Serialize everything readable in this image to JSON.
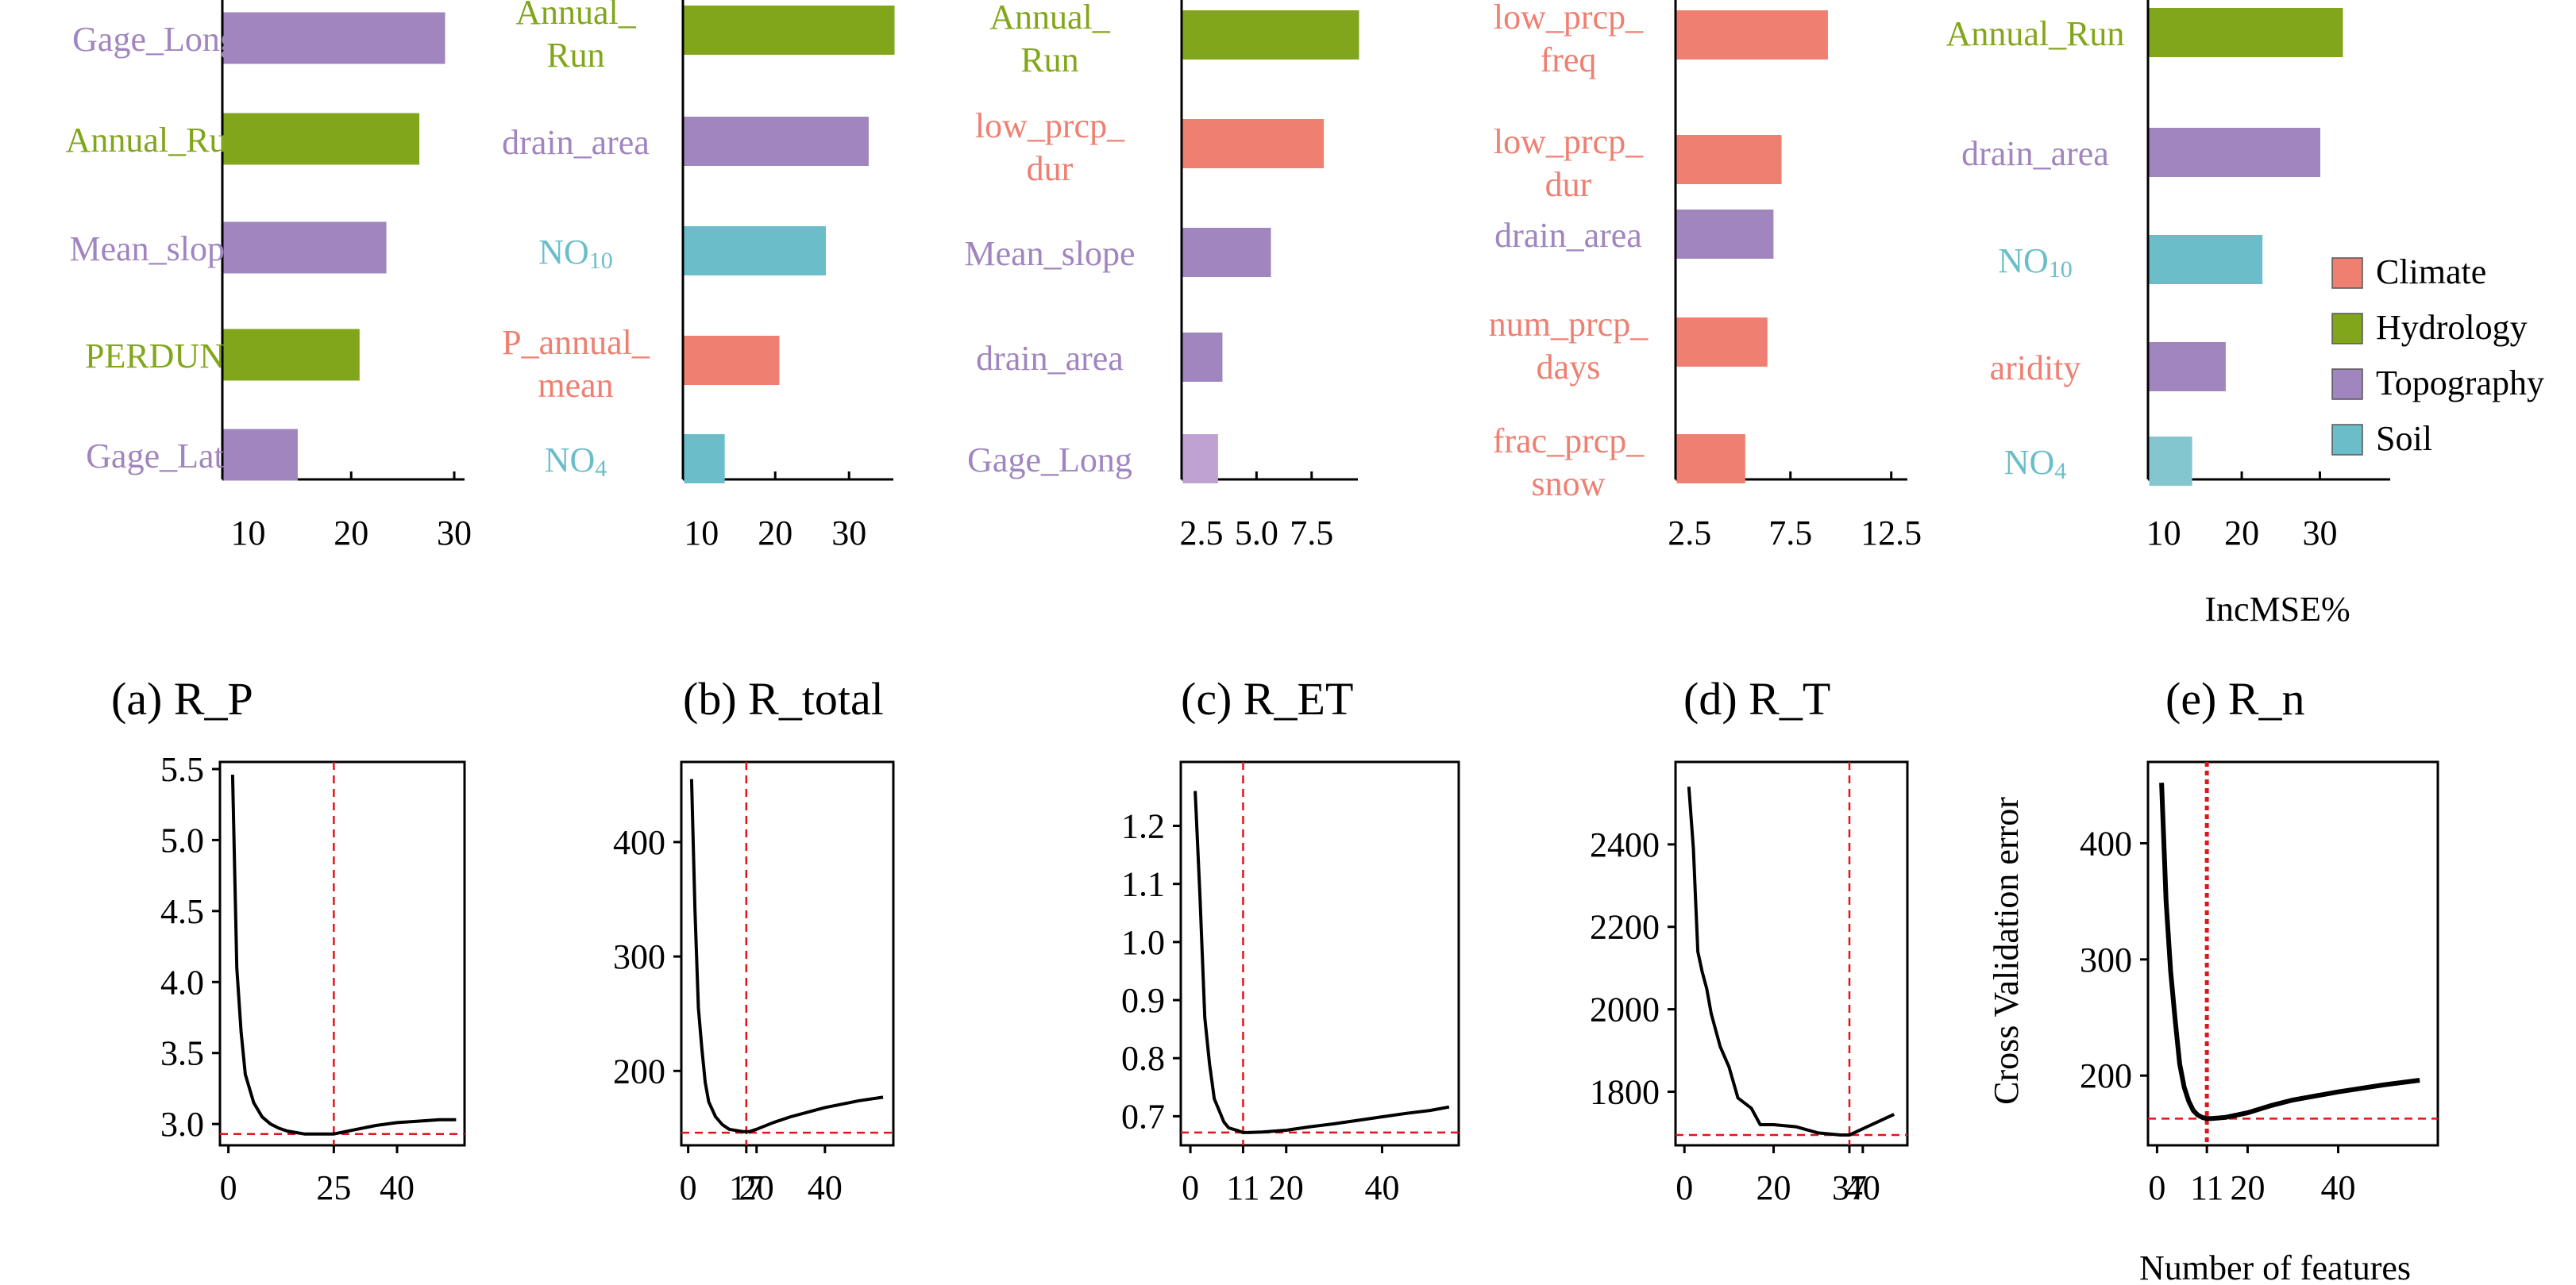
{
  "colors": {
    "Climate": "#ef7f71",
    "Hydrology": "#82a61b",
    "Topography": "#a085be",
    "Soil": "#6bbec9",
    "Topography_light": "#bfa2d2",
    "Soil_light": "#84c6d0",
    "threshold": "#e0141b"
  },
  "legend": {
    "items": [
      {
        "label": "Climate",
        "color": "#ef7f71"
      },
      {
        "label": "Hydrology",
        "color": "#82a61b"
      },
      {
        "label": "Topography",
        "color": "#a085be"
      },
      {
        "label": "Soil",
        "color": "#6bbec9"
      }
    ]
  },
  "xlabel_importance": "IncMSE%",
  "ylabel_cv": "Cross Validation error",
  "xlabel_cv": "Number of features",
  "chart_data": [
    {
      "type": "bar",
      "orientation": "horizontal",
      "xlim": [
        7.5,
        31
      ],
      "xticks": [
        10,
        20,
        30
      ],
      "bars": [
        {
          "label": [
            "Gage_Long"
          ],
          "value": 29.0,
          "group": "Topography"
        },
        {
          "label": [
            "Annual_Run"
          ],
          "value": 26.5,
          "group": "Hydrology"
        },
        {
          "label": [
            "Mean_slope"
          ],
          "value": 23.3,
          "group": "Topography"
        },
        {
          "label": [
            "PERDUN"
          ],
          "value": 20.7,
          "group": "Hydrology"
        },
        {
          "label": [
            "Gage_Lat"
          ],
          "value": 14.7,
          "group": "Topography"
        }
      ]
    },
    {
      "type": "bar",
      "orientation": "horizontal",
      "xlim": [
        7.5,
        36
      ],
      "xticks": [
        10,
        20,
        30
      ],
      "bars": [
        {
          "label": [
            "Annual_",
            "Run"
          ],
          "value": 36.0,
          "group": "Hydrology"
        },
        {
          "label": [
            "drain_area"
          ],
          "value": 32.5,
          "group": "Topography"
        },
        {
          "label": [
            "NO",
            "10"
          ],
          "sub": true,
          "value": 26.7,
          "group": "Soil"
        },
        {
          "label": [
            "P_annual_",
            "mean"
          ],
          "value": 20.4,
          "group": "Climate"
        },
        {
          "label": [
            "NO",
            "4"
          ],
          "sub": true,
          "value": 13.0,
          "group": "Soil"
        }
      ]
    },
    {
      "type": "bar",
      "orientation": "horizontal",
      "xlim": [
        1.6,
        9.6
      ],
      "xticks": [
        2.5,
        5.0,
        7.5
      ],
      "tickLabels": [
        "2.5",
        "5.0",
        "7.5"
      ],
      "bars": [
        {
          "label": [
            "Annual_",
            "Run"
          ],
          "value": 9.6,
          "group": "Hydrology"
        },
        {
          "label": [
            "low_prcp_",
            "dur"
          ],
          "value": 8.0,
          "group": "Climate"
        },
        {
          "label": [
            "Mean_slope"
          ],
          "value": 5.6,
          "group": "Topography"
        },
        {
          "label": [
            "drain_area"
          ],
          "value": 3.4,
          "group": "Topography"
        },
        {
          "label": [
            "Gage_Long"
          ],
          "value": 3.2,
          "group": "Topography_light"
        }
      ]
    },
    {
      "type": "bar",
      "orientation": "horizontal",
      "xlim": [
        1.8,
        13.3
      ],
      "xticks": [
        2.5,
        7.5,
        12.5
      ],
      "tickLabels": [
        "2.5",
        "7.5",
        "12.5"
      ],
      "bars": [
        {
          "label": [
            "low_prcp_",
            "freq"
          ],
          "value": 9.3,
          "group": "Climate"
        },
        {
          "label": [
            "low_prcp_",
            "dur"
          ],
          "value": 7.0,
          "group": "Climate"
        },
        {
          "label": [
            "drain_area"
          ],
          "value": 6.6,
          "group": "Topography"
        },
        {
          "label": [
            "num_prcp_",
            "days"
          ],
          "value": 6.3,
          "group": "Climate"
        },
        {
          "label": [
            "frac_prcp_",
            "snow"
          ],
          "value": 5.2,
          "group": "Climate"
        }
      ]
    },
    {
      "type": "bar",
      "orientation": "horizontal",
      "xlim": [
        8,
        39
      ],
      "xticks": [
        10,
        20,
        30
      ],
      "bars": [
        {
          "label": [
            "Annual_Run"
          ],
          "value": 32.8,
          "group": "Hydrology"
        },
        {
          "label": [
            "drain_area"
          ],
          "value": 29.9,
          "group": "Topography"
        },
        {
          "label": [
            "NO",
            "10"
          ],
          "sub": true,
          "value": 22.5,
          "group": "Soil"
        },
        {
          "label": [
            "aridity"
          ],
          "value": 17.8,
          "group": "Topography",
          "labelGroup": "Climate"
        },
        {
          "label": [
            "NO",
            "4"
          ],
          "sub": true,
          "value": 13.5,
          "group": "Soil_light"
        }
      ]
    },
    {
      "type": "line",
      "title": "(a) R_P",
      "xlim": [
        -2,
        56
      ],
      "ylim": [
        2.85,
        5.55
      ],
      "xticks": [
        0,
        25,
        40
      ],
      "yticks": [
        3.0,
        3.5,
        4.0,
        4.5,
        5.0,
        5.5
      ],
      "yticklabels": [
        "3.0",
        "3.5",
        "4.0",
        "4.5",
        "5.0",
        "5.5"
      ],
      "optimal": 25,
      "min_value": 2.93,
      "x": [
        1,
        2,
        3,
        4,
        6,
        8,
        10,
        12,
        14,
        16,
        18,
        20,
        25,
        30,
        35,
        40,
        45,
        50,
        54
      ],
      "y": [
        5.46,
        4.1,
        3.65,
        3.35,
        3.15,
        3.05,
        3.0,
        2.97,
        2.95,
        2.94,
        2.93,
        2.93,
        2.93,
        2.96,
        2.99,
        3.01,
        3.02,
        3.03,
        3.03
      ]
    },
    {
      "type": "line",
      "title": "(b) R_total",
      "xlim": [
        -2,
        60
      ],
      "ylim": [
        135,
        470
      ],
      "xticks": [
        0,
        17,
        20,
        40
      ],
      "yticks": [
        200,
        300,
        400
      ],
      "optimal": 17,
      "min_value": 146,
      "x": [
        1,
        2,
        3,
        4,
        5,
        6,
        8,
        10,
        12,
        14,
        16,
        17,
        18,
        20,
        25,
        30,
        40,
        50,
        57
      ],
      "y": [
        455,
        340,
        255,
        220,
        190,
        173,
        160,
        153,
        149,
        148,
        147,
        147,
        147,
        149,
        155,
        160,
        168,
        174,
        177
      ]
    },
    {
      "type": "line",
      "title": "(c) R_ET",
      "xlim": [
        -2,
        56
      ],
      "ylim": [
        0.65,
        1.31
      ],
      "xticks": [
        0,
        11,
        20,
        40
      ],
      "yticks": [
        0.7,
        0.8,
        0.9,
        1.0,
        1.1,
        1.2
      ],
      "yticklabels": [
        "0.7",
        "0.8",
        "0.9",
        "1.0",
        "1.1",
        "1.2"
      ],
      "optimal": 11,
      "min_value": 0.672,
      "x": [
        1,
        2,
        3,
        4,
        5,
        6,
        7,
        8,
        10,
        11,
        12,
        15,
        20,
        25,
        30,
        35,
        40,
        45,
        50,
        54
      ],
      "y": [
        1.26,
        1.08,
        0.87,
        0.79,
        0.73,
        0.71,
        0.69,
        0.68,
        0.675,
        0.672,
        0.672,
        0.673,
        0.676,
        0.682,
        0.687,
        0.693,
        0.699,
        0.705,
        0.71,
        0.716
      ]
    },
    {
      "type": "line",
      "title": "(d) R_T",
      "xlim": [
        -2,
        50
      ],
      "ylim": [
        1670,
        2600
      ],
      "xticks": [
        0,
        20,
        37,
        40
      ],
      "yticks": [
        1800,
        2000,
        2200,
        2400
      ],
      "optimal": 37,
      "min_value": 1695,
      "x": [
        1,
        2,
        3,
        4,
        5,
        6,
        8,
        10,
        12,
        15,
        17,
        20,
        25,
        30,
        35,
        37,
        40,
        45,
        47
      ],
      "y": [
        2540,
        2390,
        2140,
        2090,
        2050,
        1990,
        1910,
        1860,
        1785,
        1760,
        1720,
        1720,
        1715,
        1700,
        1695,
        1695,
        1710,
        1735,
        1745
      ]
    },
    {
      "type": "line",
      "title": "(e) R_n",
      "xlim": [
        -2,
        62
      ],
      "ylim": [
        140,
        470
      ],
      "xticks": [
        0,
        11,
        20,
        40
      ],
      "yticks": [
        200,
        300,
        400
      ],
      "optimal": 11,
      "min_value": 163,
      "x": [
        1,
        2,
        3,
        4,
        5,
        6,
        7,
        8,
        9,
        10,
        11,
        12,
        15,
        20,
        25,
        30,
        40,
        50,
        58
      ],
      "y": [
        452,
        350,
        290,
        248,
        210,
        190,
        178,
        170,
        166,
        164,
        163,
        163,
        164,
        168,
        174,
        179,
        186,
        192,
        196
      ]
    }
  ]
}
